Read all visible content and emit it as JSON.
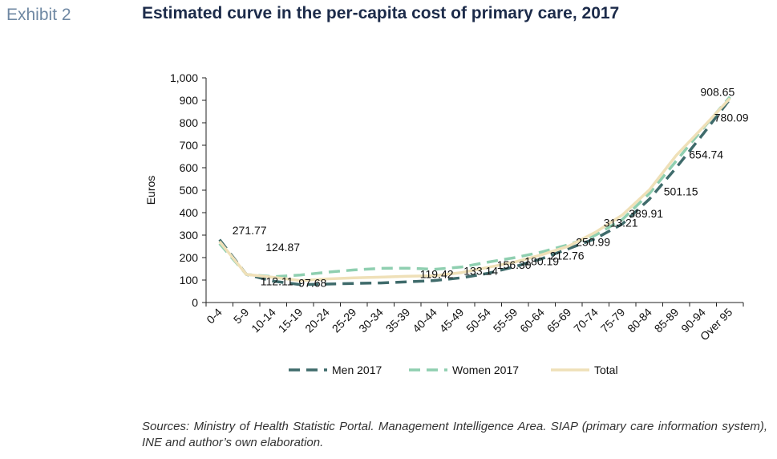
{
  "header": {
    "exhibit": "Exhibit 2",
    "title": "Estimated curve in the per-capita cost of primary care, 2017"
  },
  "footer": {
    "source": "Sources: Ministry of Health Statistic Portal. Management Intelligence Area. SIAP (primary care information system), INE and author’s own elaboration."
  },
  "colors": {
    "men": "#3f6b6b",
    "women": "#8fcfb0",
    "total": "#efe0b8",
    "axis": "#222222"
  },
  "chart_data": {
    "type": "line",
    "title": "Estimated curve in the per-capita cost of primary care, 2017",
    "xlabel": "",
    "ylabel": "Euros",
    "ylim": [
      0,
      1000
    ],
    "yticks": [
      "0",
      "100",
      "200",
      "300",
      "400",
      "500",
      "600",
      "700",
      "800",
      "900",
      "1,000"
    ],
    "grid": false,
    "legend": "bottom",
    "categories": [
      "0-4",
      "5-9",
      "10-14",
      "15-19",
      "20-24",
      "25-29",
      "30-34",
      "35-39",
      "40-44",
      "45-49",
      "50-54",
      "55-59",
      "60-64",
      "65-69",
      "70-74",
      "75-79",
      "80-84",
      "85-89",
      "90-94",
      "Over 95"
    ],
    "series": [
      {
        "name": "Men 2017",
        "style": "dashed",
        "values": [
          280,
          125,
          95,
          80,
          82,
          85,
          87,
          92,
          98,
          110,
          130,
          160,
          195,
          240,
          285,
          350,
          460,
          600,
          750,
          905
        ]
      },
      {
        "name": "Women 2017",
        "style": "dashed",
        "values": [
          262,
          125,
          115,
          122,
          135,
          145,
          152,
          153,
          148,
          158,
          180,
          200,
          225,
          258,
          300,
          370,
          485,
          630,
          775,
          915
        ]
      },
      {
        "name": "Total",
        "style": "solid",
        "values": [
          271.77,
          124.87,
          112.11,
          97.68,
          105,
          110,
          113,
          117,
          119.42,
          133.14,
          156.3,
          180.19,
          212.76,
          250.99,
          313.21,
          389.91,
          501.15,
          654.74,
          780.09,
          908.65
        ]
      }
    ],
    "data_labels": [
      {
        "category": "0-4",
        "text": "271.77"
      },
      {
        "category": "5-9",
        "text": "124.87"
      },
      {
        "category": "10-14",
        "text": "112.11"
      },
      {
        "category": "15-19",
        "text": "97.68"
      },
      {
        "category": "40-44",
        "text": "119.42"
      },
      {
        "category": "45-49",
        "text": "133.14"
      },
      {
        "category": "50-54",
        "text": "156.30"
      },
      {
        "category": "55-59",
        "text": "180.19"
      },
      {
        "category": "60-64",
        "text": "212.76"
      },
      {
        "category": "65-69",
        "text": "250.99"
      },
      {
        "category": "70-74",
        "text": "313.21"
      },
      {
        "category": "75-79",
        "text": "389.91"
      },
      {
        "category": "80-84",
        "text": "501.15"
      },
      {
        "category": "85-89",
        "text": "654.74"
      },
      {
        "category": "90-94",
        "text": "780.09"
      },
      {
        "category": "Over 95",
        "text": "908.65"
      }
    ]
  }
}
